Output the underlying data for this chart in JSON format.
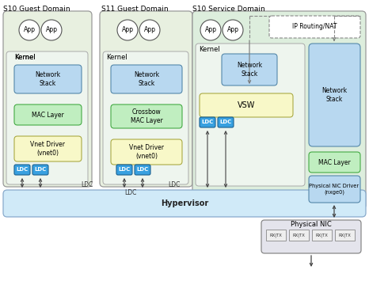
{
  "bg_color": "#ffffff",
  "domain_guest_bg": "#e8f0e0",
  "domain_service_bg": "#ddeedd",
  "hypervisor_bg_top": "#d0eaf8",
  "hypervisor_bg_bot": "#e8f4fc",
  "kernel_bg": "#eef5ee",
  "network_stack_color": "#b8d8f0",
  "mac_layer_color": "#c0eec0",
  "vnet_driver_color": "#f8f8c8",
  "ldc_color": "#38a0e0",
  "vsw_color": "#f8f8c8",
  "app_circle_color": "#ffffff",
  "physical_nic_bg": "#e0e0e8",
  "phy_nic_driver_color": "#b8d8f0",
  "arrow_color": "#444444",
  "edge_color": "#888888",
  "title_s10_guest": "S10 Guest Domain",
  "title_s11_guest": "S11 Guest Domain",
  "title_s10_service": "S10 Service Domain"
}
